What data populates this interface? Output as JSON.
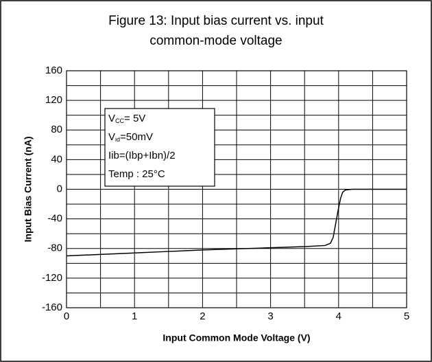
{
  "chart_data": {
    "type": "line",
    "title": [
      "Figure 13: Input bias current vs. input",
      "common-mode voltage"
    ],
    "xlabel": "Input Common Mode Voltage (V)",
    "ylabel": "Input Bias Current (nA)",
    "annotation": [
      [
        "V",
        "CC",
        "= 5V"
      ],
      [
        "V",
        "id",
        "=50mV"
      ],
      [
        "Iib=(Ibp+Ibn)/2"
      ],
      [
        "Temp : 25°C"
      ]
    ],
    "x": [
      0,
      0.5,
      1,
      1.5,
      2,
      2.5,
      3,
      3.5,
      3.8,
      3.88,
      3.92,
      3.95,
      3.98,
      4.0,
      4.03,
      4.06,
      4.1,
      4.2,
      4.5,
      5
    ],
    "series": [
      {
        "name": "Iib",
        "color": "#000000",
        "values": [
          -90,
          -88,
          -86,
          -84,
          -82,
          -80.5,
          -79,
          -77.5,
          -76,
          -73,
          -65,
          -50,
          -35,
          -25,
          -12,
          -4,
          -1,
          0,
          0,
          0
        ]
      }
    ],
    "xlim": [
      0,
      5
    ],
    "xticks": [
      0,
      1,
      2,
      3,
      4,
      5
    ],
    "xminorticks": [
      0.5,
      1.5,
      2.5,
      3.5,
      4.5
    ],
    "ylim": [
      -160,
      160
    ],
    "yticks": [
      -160,
      -120,
      -80,
      -40,
      0,
      40,
      80,
      120,
      160
    ],
    "yminorticks": [
      -140,
      -100,
      -60,
      -20,
      20,
      60,
      100,
      140
    ],
    "grid": true
  }
}
